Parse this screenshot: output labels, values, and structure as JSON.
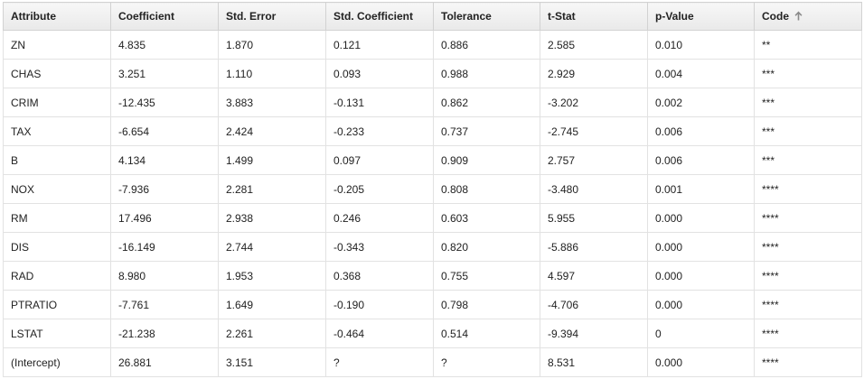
{
  "table": {
    "columns": [
      {
        "label": "Attribute"
      },
      {
        "label": "Coefficient"
      },
      {
        "label": "Std. Error"
      },
      {
        "label": "Std. Coefficient"
      },
      {
        "label": "Tolerance"
      },
      {
        "label": "t-Stat"
      },
      {
        "label": "p-Value"
      },
      {
        "label": "Code",
        "sorted": "ascending",
        "sort_icon": "sort-ascending-arrow-icon"
      }
    ],
    "rows": [
      [
        "ZN",
        "4.835",
        "1.870",
        "0.121",
        "0.886",
        "2.585",
        "0.010",
        "**"
      ],
      [
        "CHAS",
        "3.251",
        "1.110",
        "0.093",
        "0.988",
        "2.929",
        "0.004",
        "***"
      ],
      [
        "CRIM",
        "-12.435",
        "3.883",
        "-0.131",
        "0.862",
        "-3.202",
        "0.002",
        "***"
      ],
      [
        "TAX",
        "-6.654",
        "2.424",
        "-0.233",
        "0.737",
        "-2.745",
        "0.006",
        "***"
      ],
      [
        "B",
        "4.134",
        "1.499",
        "0.097",
        "0.909",
        "2.757",
        "0.006",
        "***"
      ],
      [
        "NOX",
        "-7.936",
        "2.281",
        "-0.205",
        "0.808",
        "-3.480",
        "0.001",
        "****"
      ],
      [
        "RM",
        "17.496",
        "2.938",
        "0.246",
        "0.603",
        "5.955",
        "0.000",
        "****"
      ],
      [
        "DIS",
        "-16.149",
        "2.744",
        "-0.343",
        "0.820",
        "-5.886",
        "0.000",
        "****"
      ],
      [
        "RAD",
        "8.980",
        "1.953",
        "0.368",
        "0.755",
        "4.597",
        "0.000",
        "****"
      ],
      [
        "PTRATIO",
        "-7.761",
        "1.649",
        "-0.190",
        "0.798",
        "-4.706",
        "0.000",
        "****"
      ],
      [
        "LSTAT",
        "-21.238",
        "2.261",
        "-0.464",
        "0.514",
        "-9.394",
        "0",
        "****"
      ],
      [
        "(Intercept)",
        "26.881",
        "3.151",
        "?",
        "?",
        "8.531",
        "0.000",
        "****"
      ]
    ]
  }
}
